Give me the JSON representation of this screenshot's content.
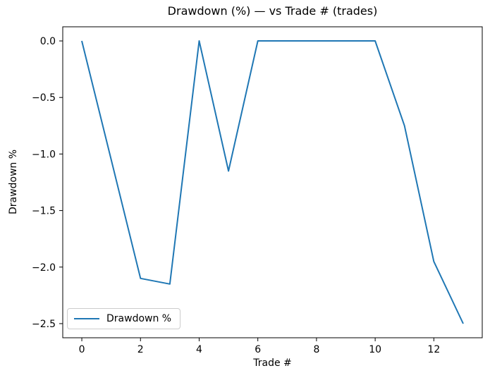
{
  "figure": {
    "background": "#ffffff",
    "spine_color": "#000000",
    "tick_color": "#000000",
    "text_color": "#000000"
  },
  "chart_data": {
    "type": "line",
    "title": "Drawdown (%) — vs Trade # (trades)",
    "xlabel": "Trade #",
    "ylabel": "Drawdown %",
    "x": [
      0,
      1,
      2,
      3,
      4,
      5,
      6,
      7,
      8,
      9,
      10,
      11,
      12,
      13
    ],
    "series": [
      {
        "name": "Drawdown %",
        "color": "#1f77b4",
        "line_width": 2,
        "values": [
          0.0,
          -1.05,
          -2.1,
          -2.15,
          0.0,
          -1.15,
          0.0,
          0.0,
          0.0,
          0.0,
          0.0,
          -0.75,
          -1.95,
          -2.5
        ]
      }
    ],
    "xlim": [
      -0.65,
      13.65
    ],
    "ylim": [
      -2.625,
      0.125
    ],
    "xticks": [
      0,
      2,
      4,
      6,
      8,
      10,
      12
    ],
    "xtick_labels": [
      "0",
      "2",
      "4",
      "6",
      "8",
      "10",
      "12"
    ],
    "yticks": [
      0,
      -0.5,
      -1,
      -1.5,
      -2,
      -2.5
    ],
    "ytick_labels": [
      "0.0",
      "−0.5",
      "−1.0",
      "−1.5",
      "−2.0",
      "−2.5"
    ],
    "grid": false,
    "legend": {
      "position": "lower left",
      "entries": [
        {
          "label": "Drawdown %",
          "color": "#1f77b4"
        }
      ]
    }
  }
}
